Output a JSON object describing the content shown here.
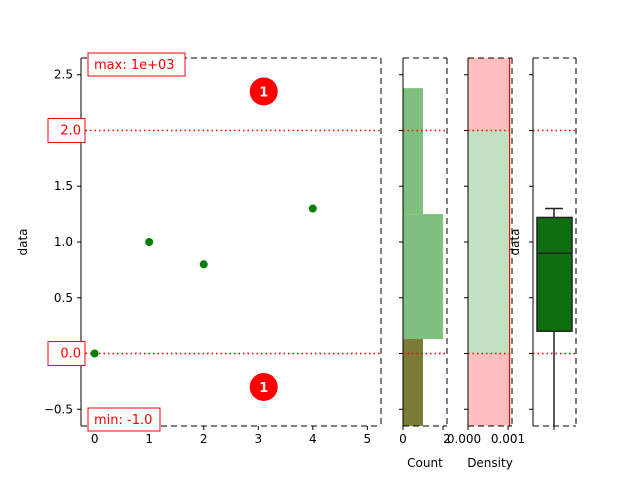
{
  "colors": {
    "points": "#008000",
    "limit_line": "#ff0000",
    "annotation": "#ff0000",
    "hist_bar": "#7fbf7f",
    "hist_dark": "#7b7b38",
    "density_in_range": "#c1e1c1",
    "density_out_of_range": "#ffbfbf",
    "box_fill": "#0f6e0f",
    "frame_dash": "#000000"
  },
  "chart_data": [
    {
      "id": "scatter",
      "type": "scatter",
      "xlabel": "",
      "ylabel": "data",
      "xlim": [
        -0.25,
        5.25
      ],
      "ylim": [
        -0.65,
        2.65
      ],
      "x_ticks": [
        "0",
        "1",
        "2",
        "3",
        "4",
        "5"
      ],
      "y_ticks": [
        "−0.5",
        "0.0",
        "0.5",
        "1.0",
        "1.5",
        "2.0",
        "2.5"
      ],
      "points": [
        {
          "x": 0,
          "y": 0.0
        },
        {
          "x": 1,
          "y": 1.0
        },
        {
          "x": 2,
          "y": 0.8
        },
        {
          "x": 4,
          "y": 1.3
        }
      ],
      "limit_lines": [
        {
          "y": 2.0,
          "label": "2.0"
        },
        {
          "y": 0.0,
          "label": "0.0"
        }
      ],
      "max_label": "max: 1e+03",
      "min_label": "min: -1.0",
      "out_of_range_markers": [
        {
          "x": 3.1,
          "y": 2.35,
          "label": "1"
        },
        {
          "x": 3.1,
          "y": -0.3,
          "label": "1"
        }
      ]
    },
    {
      "id": "histogram",
      "type": "bar",
      "orientation": "horizontal",
      "xlabel": "Count",
      "x_ticks": [
        "0",
        "2"
      ],
      "xlim": [
        0,
        2.2
      ],
      "ylim": [
        -0.65,
        2.65
      ],
      "bins": [
        {
          "y0": 0.13,
          "y1": 1.25,
          "count": 2
        },
        {
          "y0": 1.25,
          "y1": 2.38,
          "count": 1
        },
        {
          "y0": -0.65,
          "y1": 0.13,
          "count": 1
        }
      ]
    },
    {
      "id": "density",
      "type": "area",
      "xlabel": "Density",
      "x_ticks": [
        "0.000",
        "0.001"
      ],
      "xlim": [
        0,
        0.0011
      ],
      "ylim": [
        -0.65,
        2.65
      ],
      "bands": [
        {
          "y0": 2.0,
          "y1": 2.65,
          "kind": "out_of_range"
        },
        {
          "y0": 0.0,
          "y1": 2.0,
          "kind": "in_range"
        },
        {
          "y0": -0.65,
          "y1": 0.0,
          "kind": "out_of_range"
        }
      ],
      "density_value": 0.00104
    },
    {
      "id": "boxplot",
      "type": "box",
      "ylabel": "data",
      "ylim": [
        -0.65,
        2.65
      ],
      "whisker_low": -0.65,
      "q1": 0.2,
      "median": 0.9,
      "q3": 1.22,
      "whisker_high": 1.3,
      "limit_lines": [
        2.0,
        0.0
      ]
    }
  ]
}
